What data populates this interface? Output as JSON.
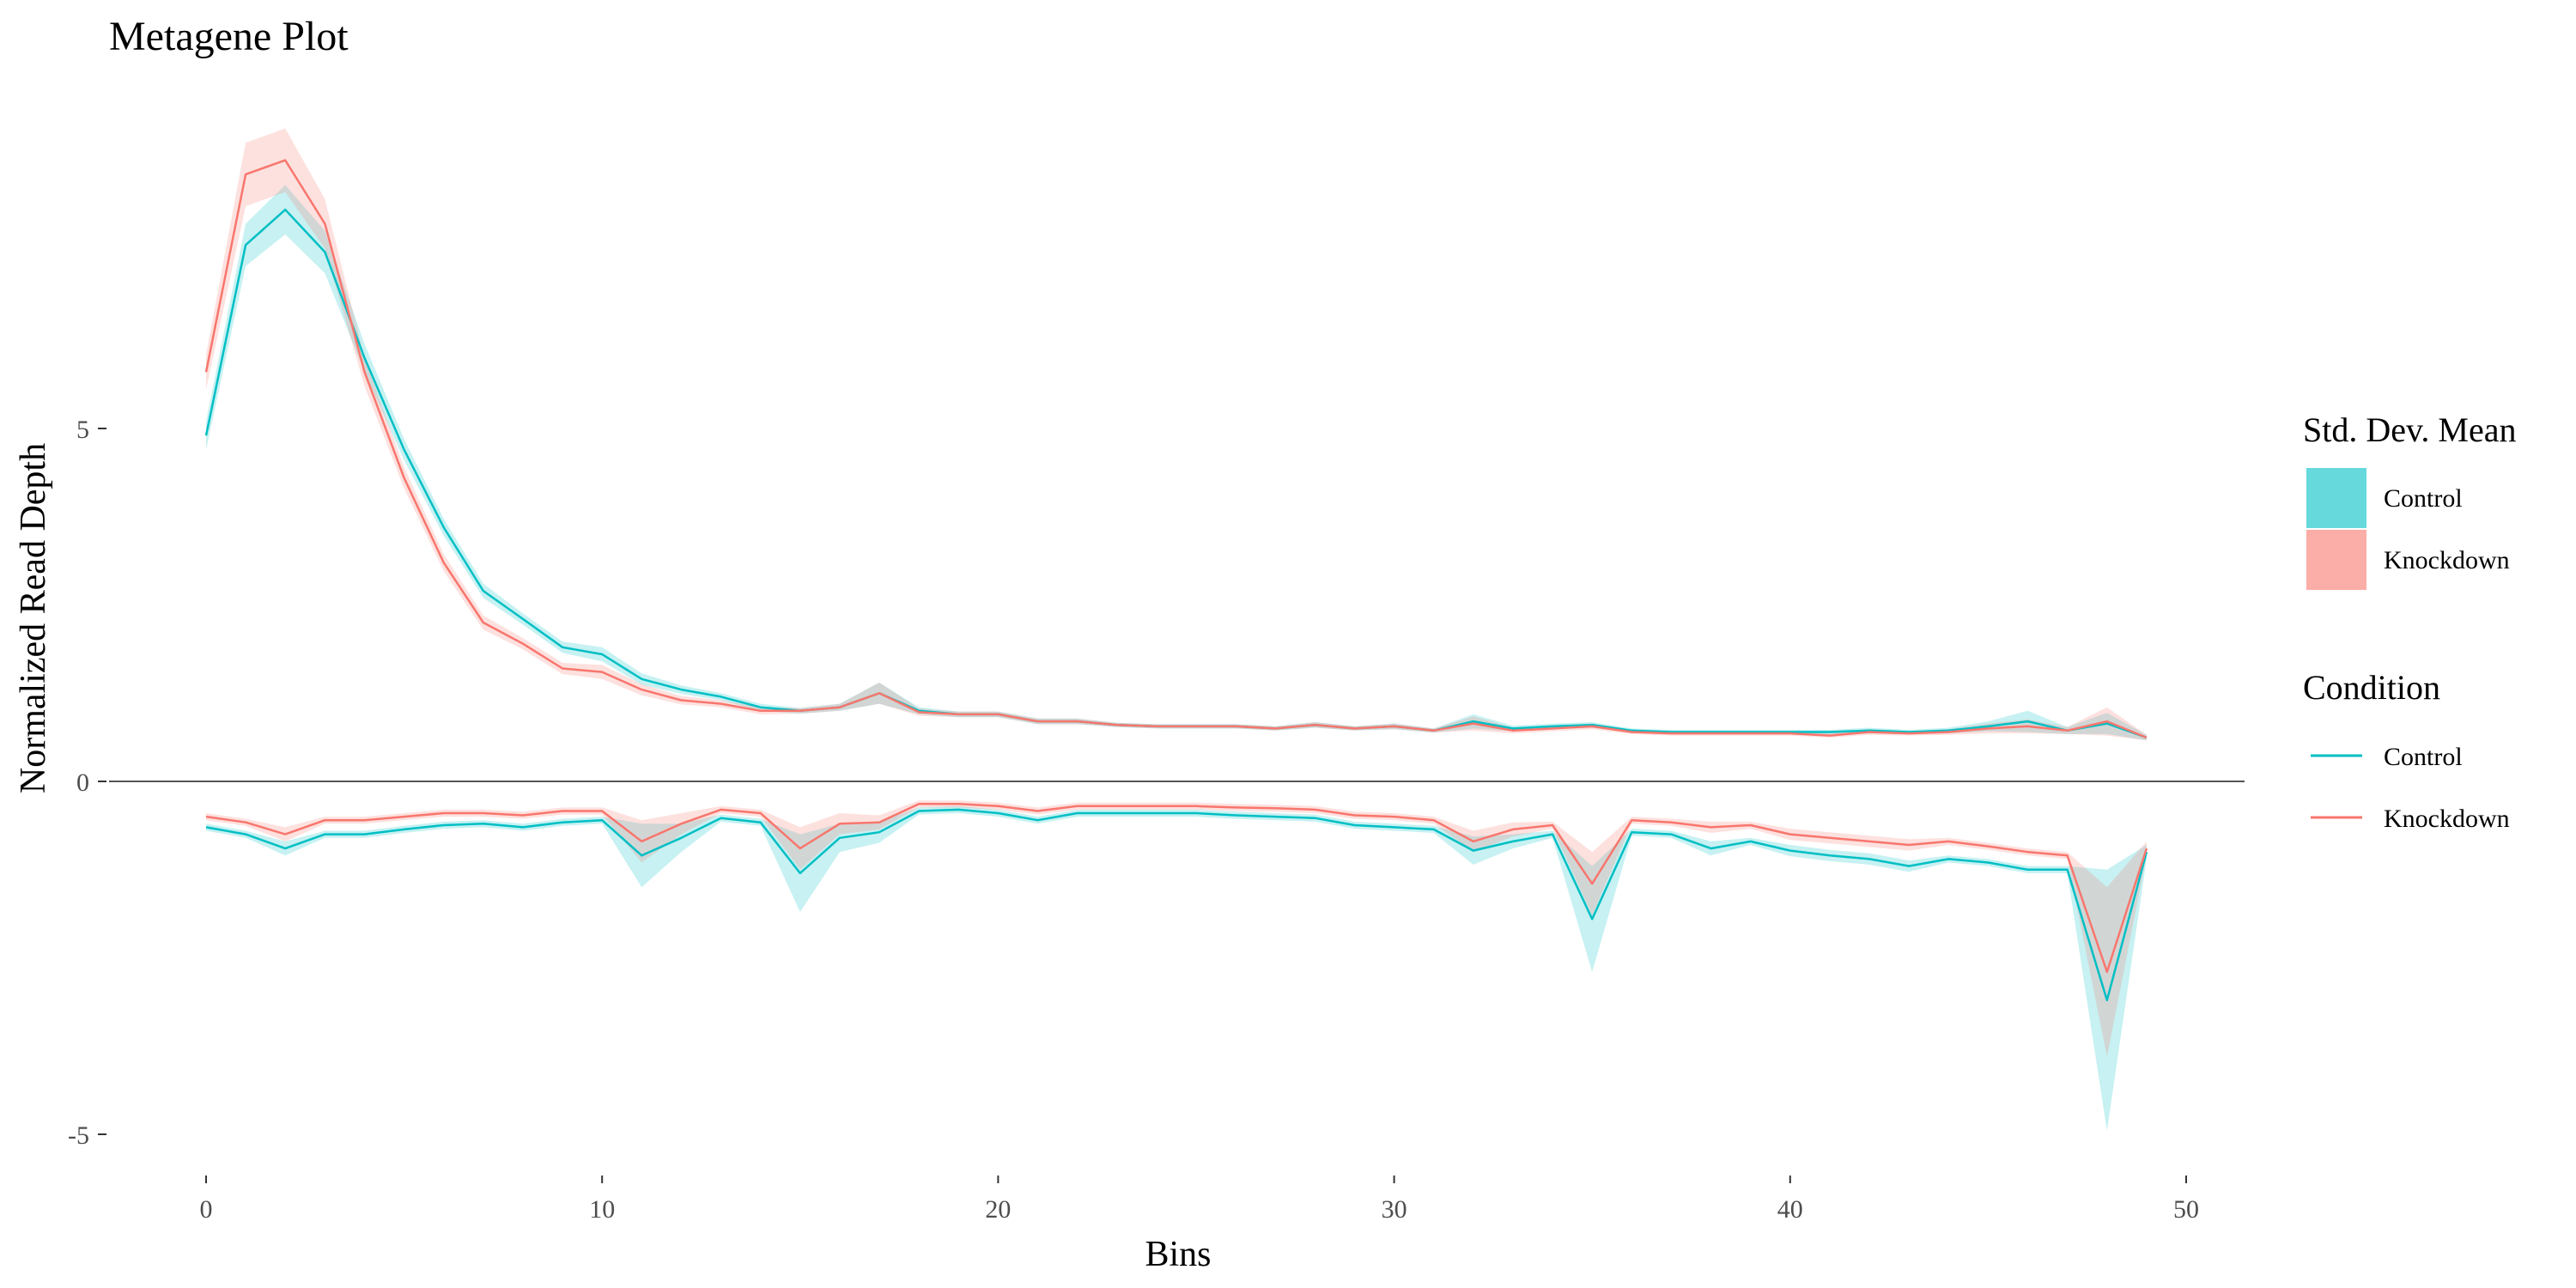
{
  "chart_data": {
    "type": "line",
    "title": "Metagene Plot",
    "xlabel": "Bins",
    "ylabel": "Normalized Read Depth",
    "xlim": [
      -2,
      51.5
    ],
    "ylim": [
      -5.3,
      10.1
    ],
    "x_ticks": [
      0,
      10,
      20,
      30,
      40,
      50
    ],
    "x_tick_labels": [
      "0",
      "10",
      "20",
      "30",
      "40",
      "50"
    ],
    "y_ticks": [
      -5,
      0,
      5
    ],
    "y_tick_labels": [
      "-5",
      "0",
      "5"
    ],
    "grid": false,
    "zero_line": 0,
    "colors": {
      "Control": "#00BFC4",
      "Knockdown": "#F8766D"
    },
    "legend_ribbon": {
      "title": "Std. Dev. Mean",
      "labels": [
        "Control",
        "Knockdown"
      ],
      "placement": "right"
    },
    "legend_line": {
      "title": "Condition",
      "labels": [
        "Control",
        "Knockdown"
      ],
      "placement": "right"
    },
    "x": [
      0,
      1,
      2,
      3,
      4,
      5,
      6,
      7,
      8,
      9,
      10,
      11,
      12,
      13,
      14,
      15,
      16,
      17,
      18,
      19,
      20,
      21,
      22,
      23,
      24,
      25,
      26,
      27,
      28,
      29,
      30,
      31,
      32,
      33,
      34,
      35,
      36,
      37,
      38,
      39,
      40,
      41,
      42,
      43,
      44,
      45,
      46,
      47,
      48,
      49
    ],
    "series": [
      {
        "name": "Control",
        "strand": "plus",
        "values": [
          4.9,
          7.6,
          8.1,
          7.5,
          6.0,
          4.7,
          3.6,
          2.7,
          2.3,
          1.9,
          1.8,
          1.45,
          1.3,
          1.2,
          1.05,
          1.0,
          1.05,
          1.25,
          1.0,
          0.95,
          0.95,
          0.85,
          0.85,
          0.8,
          0.78,
          0.78,
          0.78,
          0.75,
          0.8,
          0.75,
          0.78,
          0.72,
          0.85,
          0.75,
          0.78,
          0.8,
          0.72,
          0.7,
          0.7,
          0.7,
          0.7,
          0.7,
          0.72,
          0.7,
          0.72,
          0.78,
          0.85,
          0.72,
          0.82,
          0.62
        ],
        "sd": [
          0.2,
          0.3,
          0.35,
          0.3,
          0.2,
          0.15,
          0.12,
          0.1,
          0.08,
          0.08,
          0.1,
          0.08,
          0.06,
          0.05,
          0.05,
          0.04,
          0.05,
          0.15,
          0.05,
          0.04,
          0.04,
          0.04,
          0.04,
          0.03,
          0.03,
          0.03,
          0.03,
          0.03,
          0.04,
          0.03,
          0.04,
          0.03,
          0.1,
          0.04,
          0.04,
          0.04,
          0.03,
          0.03,
          0.03,
          0.03,
          0.03,
          0.03,
          0.04,
          0.03,
          0.04,
          0.07,
          0.15,
          0.05,
          0.15,
          0.04
        ]
      },
      {
        "name": "Knockdown",
        "strand": "plus",
        "values": [
          5.8,
          8.6,
          8.8,
          7.9,
          5.8,
          4.3,
          3.1,
          2.25,
          1.95,
          1.6,
          1.55,
          1.3,
          1.15,
          1.1,
          1.0,
          1.0,
          1.05,
          1.25,
          0.98,
          0.95,
          0.95,
          0.85,
          0.85,
          0.8,
          0.78,
          0.78,
          0.78,
          0.75,
          0.8,
          0.75,
          0.78,
          0.72,
          0.82,
          0.72,
          0.75,
          0.78,
          0.7,
          0.68,
          0.68,
          0.68,
          0.68,
          0.65,
          0.7,
          0.68,
          0.7,
          0.75,
          0.78,
          0.72,
          0.85,
          0.62
        ],
        "sd": [
          0.25,
          0.45,
          0.45,
          0.35,
          0.2,
          0.15,
          0.12,
          0.1,
          0.08,
          0.08,
          0.1,
          0.08,
          0.06,
          0.05,
          0.05,
          0.04,
          0.05,
          0.15,
          0.05,
          0.04,
          0.04,
          0.04,
          0.04,
          0.03,
          0.03,
          0.03,
          0.03,
          0.03,
          0.04,
          0.03,
          0.04,
          0.03,
          0.1,
          0.04,
          0.04,
          0.04,
          0.03,
          0.03,
          0.03,
          0.03,
          0.03,
          0.03,
          0.04,
          0.03,
          0.04,
          0.07,
          0.1,
          0.05,
          0.2,
          0.04
        ]
      },
      {
        "name": "Control",
        "strand": "minus",
        "values": [
          -0.65,
          -0.75,
          -0.95,
          -0.75,
          -0.75,
          -0.68,
          -0.62,
          -0.6,
          -0.65,
          -0.58,
          -0.55,
          -1.05,
          -0.8,
          -0.52,
          -0.58,
          -1.3,
          -0.8,
          -0.72,
          -0.42,
          -0.4,
          -0.45,
          -0.55,
          -0.45,
          -0.45,
          -0.45,
          -0.45,
          -0.48,
          -0.5,
          -0.52,
          -0.62,
          -0.65,
          -0.68,
          -0.98,
          -0.85,
          -0.75,
          -1.95,
          -0.72,
          -0.75,
          -0.95,
          -0.85,
          -0.98,
          -1.05,
          -1.1,
          -1.2,
          -1.1,
          -1.15,
          -1.25,
          -1.25,
          -3.1,
          -1.0
        ],
        "sd": [
          0.05,
          0.05,
          0.1,
          0.05,
          0.05,
          0.05,
          0.05,
          0.05,
          0.05,
          0.05,
          0.05,
          0.45,
          0.2,
          0.05,
          0.05,
          0.55,
          0.2,
          0.15,
          0.05,
          0.05,
          0.05,
          0.05,
          0.05,
          0.05,
          0.05,
          0.05,
          0.05,
          0.05,
          0.05,
          0.05,
          0.05,
          0.05,
          0.2,
          0.1,
          0.05,
          0.75,
          0.05,
          0.05,
          0.1,
          0.05,
          0.08,
          0.08,
          0.08,
          0.08,
          0.05,
          0.05,
          0.05,
          0.05,
          1.85,
          0.1
        ]
      },
      {
        "name": "Knockdown",
        "strand": "minus",
        "values": [
          -0.5,
          -0.58,
          -0.75,
          -0.55,
          -0.55,
          -0.5,
          -0.45,
          -0.45,
          -0.48,
          -0.42,
          -0.42,
          -0.85,
          -0.6,
          -0.4,
          -0.45,
          -0.95,
          -0.6,
          -0.58,
          -0.32,
          -0.32,
          -0.35,
          -0.42,
          -0.35,
          -0.35,
          -0.35,
          -0.35,
          -0.37,
          -0.38,
          -0.4,
          -0.48,
          -0.5,
          -0.55,
          -0.85,
          -0.68,
          -0.62,
          -1.45,
          -0.55,
          -0.58,
          -0.65,
          -0.62,
          -0.75,
          -0.8,
          -0.85,
          -0.9,
          -0.85,
          -0.92,
          -1.0,
          -1.05,
          -2.7,
          -0.95
        ],
        "sd": [
          0.05,
          0.05,
          0.1,
          0.05,
          0.05,
          0.05,
          0.05,
          0.05,
          0.05,
          0.05,
          0.05,
          0.3,
          0.15,
          0.05,
          0.05,
          0.3,
          0.15,
          0.1,
          0.05,
          0.05,
          0.05,
          0.05,
          0.05,
          0.05,
          0.05,
          0.05,
          0.05,
          0.05,
          0.05,
          0.05,
          0.05,
          0.05,
          0.15,
          0.1,
          0.05,
          0.45,
          0.05,
          0.05,
          0.08,
          0.05,
          0.08,
          0.08,
          0.08,
          0.08,
          0.05,
          0.05,
          0.05,
          0.05,
          1.2,
          0.1
        ]
      }
    ]
  }
}
